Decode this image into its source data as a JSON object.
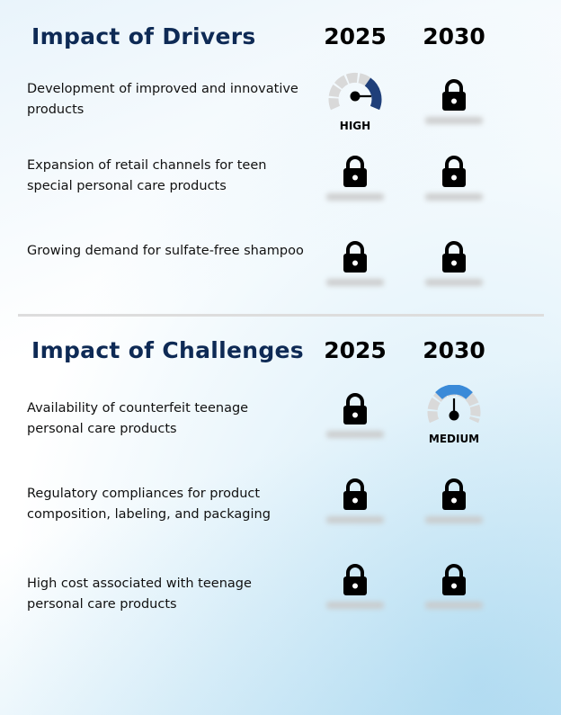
{
  "drivers": {
    "title": "Impact of Drivers",
    "year1": "2025",
    "year2": "2030",
    "rows": [
      {
        "label": "Development of improved and innovative products",
        "y2025": "HIGH",
        "y2030": "locked"
      },
      {
        "label": "Expansion of retail channels for teen special personal care products",
        "y2025": "locked",
        "y2030": "locked"
      },
      {
        "label": "Growing demand for sulfate-free shampoo",
        "y2025": "locked",
        "y2030": "locked"
      }
    ]
  },
  "challenges": {
    "title": "Impact of Challenges",
    "year1": "2025",
    "year2": "2030",
    "rows": [
      {
        "label": "Availability of counterfeit teenage personal care products",
        "y2025": "locked",
        "y2030": "MEDIUM"
      },
      {
        "label": "Regulatory compliances for product composition, labeling, and packaging",
        "y2025": "locked",
        "y2030": "locked"
      },
      {
        "label": "High cost associated with teenage personal care products",
        "y2025": "locked",
        "y2030": "locked"
      }
    ]
  },
  "colors": {
    "title": "#0e2a55",
    "gauge_high": "#1f3f7a",
    "gauge_medium": "#3a8ad8",
    "gauge_track": "#d9d9d9"
  },
  "icons": {
    "lock": "lock-icon",
    "gauge": "gauge-icon"
  }
}
